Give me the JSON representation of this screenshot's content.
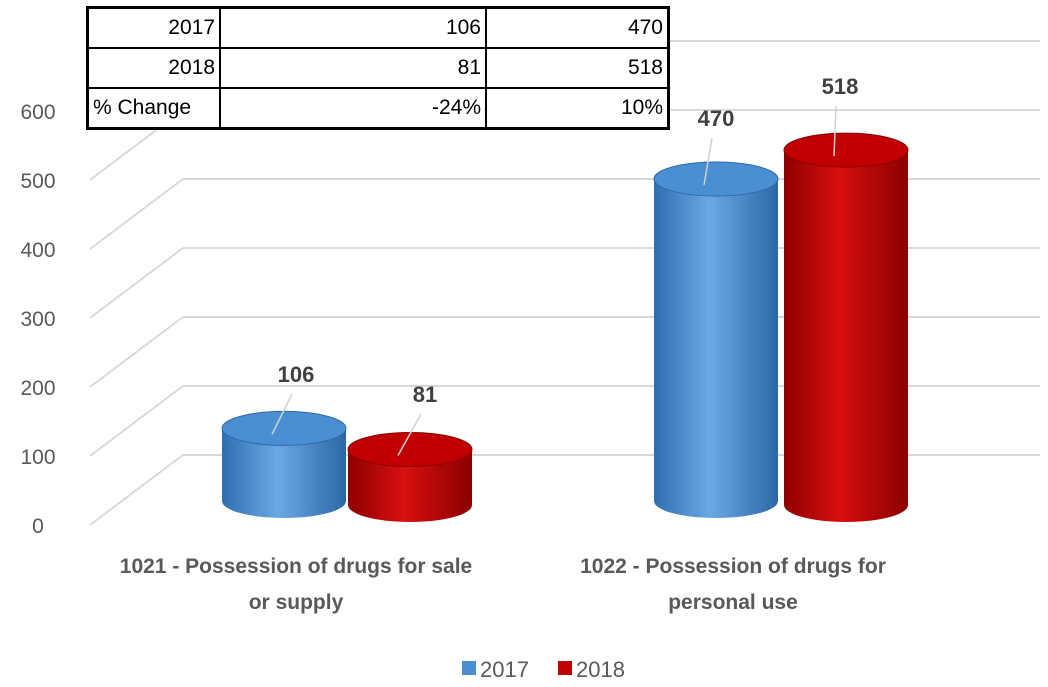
{
  "table": {
    "rows": [
      [
        "2017",
        "106",
        "470"
      ],
      [
        "2018",
        "81",
        "518"
      ],
      [
        "% Change",
        "-24%",
        "10%"
      ]
    ]
  },
  "chart_data": {
    "type": "bar",
    "categories": [
      [
        "1021 - Possession of drugs for sale",
        "or supply"
      ],
      [
        "1022 - Possession of drugs for",
        "personal use"
      ]
    ],
    "series": [
      {
        "name": "2017",
        "values": [
          106,
          470
        ],
        "color": "#4a8fd4"
      },
      {
        "name": "2018",
        "values": [
          81,
          518
        ],
        "color": "#c00000"
      }
    ],
    "yticks": [
      "0",
      "100",
      "200",
      "300",
      "400",
      "500",
      "600"
    ],
    "ylim": [
      0,
      600
    ],
    "grid": true,
    "legend": "bottom",
    "style": "3d-cylinder"
  }
}
